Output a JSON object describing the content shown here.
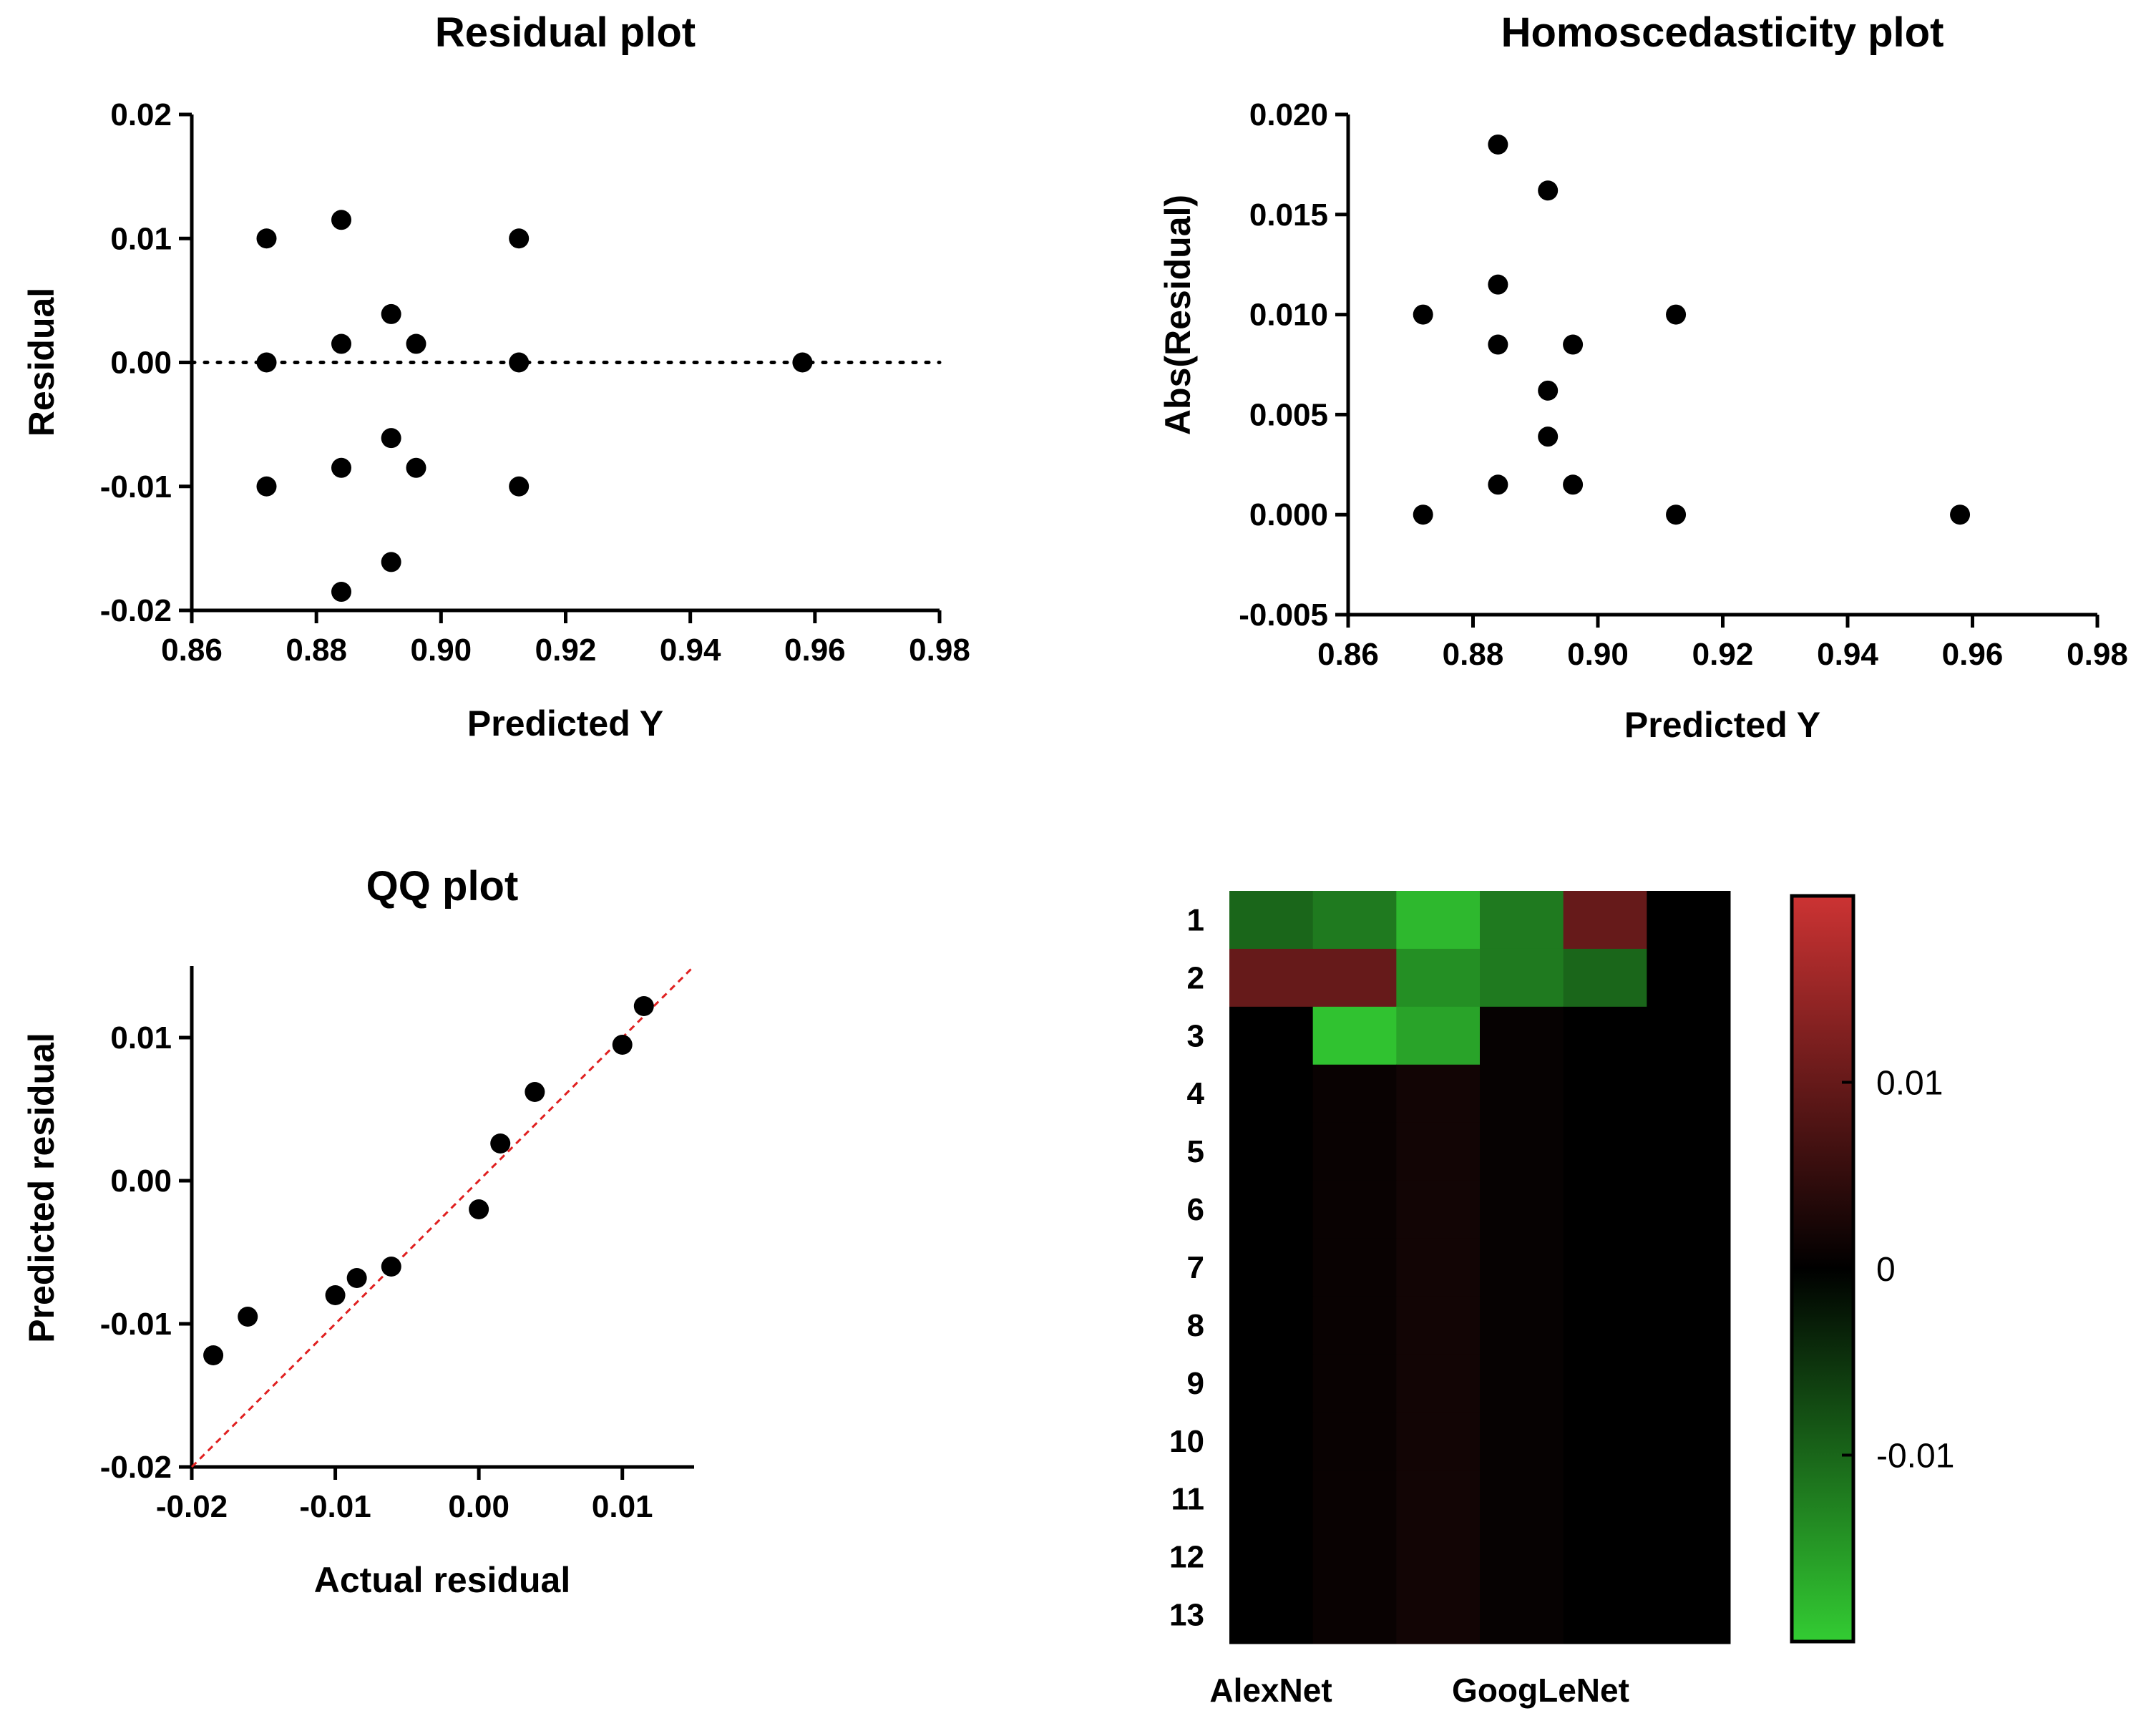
{
  "chart_data": [
    {
      "id": "residual",
      "type": "scatter",
      "title": "Residual plot",
      "xlabel": "Predicted Y",
      "ylabel": "Residual",
      "xlim": [
        0.86,
        0.98
      ],
      "ylim": [
        -0.02,
        0.02
      ],
      "xticks": [
        "0.86",
        "0.88",
        "0.90",
        "0.92",
        "0.94",
        "0.96",
        "0.98"
      ],
      "yticks": [
        "-0.02",
        "-0.01",
        "0.00",
        "0.01",
        "0.02"
      ],
      "reference_line": {
        "y": 0,
        "style": "dotted"
      },
      "points": [
        {
          "x": 0.872,
          "y": 0.01
        },
        {
          "x": 0.872,
          "y": 0.0
        },
        {
          "x": 0.872,
          "y": -0.01
        },
        {
          "x": 0.884,
          "y": 0.0115
        },
        {
          "x": 0.884,
          "y": 0.0015
        },
        {
          "x": 0.884,
          "y": -0.0085
        },
        {
          "x": 0.884,
          "y": -0.0185
        },
        {
          "x": 0.892,
          "y": 0.0039
        },
        {
          "x": 0.892,
          "y": -0.0061
        },
        {
          "x": 0.892,
          "y": -0.0161
        },
        {
          "x": 0.896,
          "y": 0.0015
        },
        {
          "x": 0.896,
          "y": -0.0085
        },
        {
          "x": 0.9125,
          "y": 0.01
        },
        {
          "x": 0.9125,
          "y": 0.0
        },
        {
          "x": 0.9125,
          "y": -0.01
        },
        {
          "x": 0.958,
          "y": 0.0
        }
      ]
    },
    {
      "id": "homoscedasticity",
      "type": "scatter",
      "title": "Homoscedasticity plot",
      "xlabel": "Predicted Y",
      "ylabel": "Abs(Residual)",
      "xlim": [
        0.86,
        0.98
      ],
      "ylim": [
        -0.005,
        0.02
      ],
      "xticks": [
        "0.86",
        "0.88",
        "0.90",
        "0.92",
        "0.94",
        "0.96",
        "0.98"
      ],
      "yticks": [
        "-0.005",
        "0.000",
        "0.005",
        "0.010",
        "0.015",
        "0.020"
      ],
      "points": [
        {
          "x": 0.872,
          "y": 0.01
        },
        {
          "x": 0.872,
          "y": 0.0
        },
        {
          "x": 0.884,
          "y": 0.0185
        },
        {
          "x": 0.884,
          "y": 0.0115
        },
        {
          "x": 0.884,
          "y": 0.0085
        },
        {
          "x": 0.884,
          "y": 0.0015
        },
        {
          "x": 0.892,
          "y": 0.0162
        },
        {
          "x": 0.892,
          "y": 0.0062
        },
        {
          "x": 0.892,
          "y": 0.0039
        },
        {
          "x": 0.896,
          "y": 0.0085
        },
        {
          "x": 0.896,
          "y": 0.0015
        },
        {
          "x": 0.9125,
          "y": 0.01
        },
        {
          "x": 0.9125,
          "y": 0.0
        },
        {
          "x": 0.958,
          "y": 0.0
        }
      ]
    },
    {
      "id": "qq",
      "type": "scatter",
      "title": "QQ plot",
      "xlabel": "Actual residual",
      "ylabel": "Predicted residual",
      "xlim": [
        -0.02,
        0.015
      ],
      "ylim": [
        -0.02,
        0.015
      ],
      "xticks": [
        "-0.02",
        "-0.01",
        "0.00",
        "0.01"
      ],
      "yticks": [
        "-0.02",
        "-0.01",
        "0.00",
        "0.01"
      ],
      "reference_line": {
        "slope": 1,
        "intercept": 0,
        "style": "dashed",
        "color": "#e02020"
      },
      "points": [
        {
          "x": -0.0185,
          "y": -0.0122
        },
        {
          "x": -0.0161,
          "y": -0.0095
        },
        {
          "x": -0.01,
          "y": -0.008
        },
        {
          "x": -0.0085,
          "y": -0.0068
        },
        {
          "x": -0.0061,
          "y": -0.006
        },
        {
          "x": 0.0,
          "y": -0.002
        },
        {
          "x": 0.0015,
          "y": 0.0026
        },
        {
          "x": 0.0039,
          "y": 0.0062
        },
        {
          "x": 0.01,
          "y": 0.0095
        },
        {
          "x": 0.0115,
          "y": 0.0122
        }
      ]
    },
    {
      "id": "heatmap",
      "type": "heatmap",
      "rows": [
        "1",
        "2",
        "3",
        "4",
        "5",
        "6",
        "7",
        "8",
        "9",
        "10",
        "11",
        "12",
        "13"
      ],
      "column_labels": [
        "AlexNet",
        "GoogLeNet"
      ],
      "n_columns": 6,
      "values": [
        [
          -0.01,
          -0.012,
          -0.018,
          -0.012,
          0.01,
          0.0
        ],
        [
          0.01,
          0.01,
          -0.014,
          -0.012,
          -0.01,
          0.0
        ],
        [
          0.0,
          -0.019,
          -0.016,
          0.0006,
          0.0,
          0.0
        ],
        [
          0.0,
          0.0009,
          0.0018,
          0.0006,
          0.0,
          0.0
        ],
        [
          0.0,
          0.0009,
          0.0018,
          0.0006,
          0.0,
          0.0
        ],
        [
          0.0,
          0.0009,
          0.0018,
          0.0006,
          0.0,
          0.0
        ],
        [
          0.0,
          0.0009,
          0.0018,
          0.0006,
          0.0,
          0.0
        ],
        [
          0.0,
          0.0009,
          0.0018,
          0.0006,
          0.0,
          0.0
        ],
        [
          0.0,
          0.0009,
          0.0018,
          0.0006,
          0.0,
          0.0
        ],
        [
          0.0,
          0.0009,
          0.0018,
          0.0006,
          0.0,
          0.0
        ],
        [
          0.0,
          0.0009,
          0.0018,
          0.0006,
          0.0,
          0.0
        ],
        [
          0.0,
          0.0009,
          0.0018,
          0.0006,
          0.0,
          0.0
        ],
        [
          0.0,
          0.0009,
          0.0018,
          0.0006,
          0.0,
          0.0
        ]
      ],
      "color_scale": {
        "min": -0.02,
        "max": 0.02,
        "low_color": "#33cc33",
        "mid_color": "#000000",
        "high_color": "#cc3333",
        "ticks": [
          {
            "value": 0.01,
            "label": "0.01"
          },
          {
            "value": 0,
            "label": "0"
          },
          {
            "value": -0.01,
            "label": "-0.01"
          }
        ]
      }
    }
  ]
}
